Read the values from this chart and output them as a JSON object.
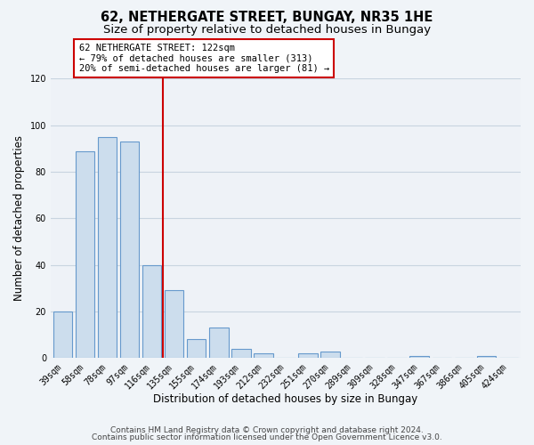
{
  "title": "62, NETHERGATE STREET, BUNGAY, NR35 1HE",
  "subtitle": "Size of property relative to detached houses in Bungay",
  "xlabel": "Distribution of detached houses by size in Bungay",
  "ylabel": "Number of detached properties",
  "bar_labels": [
    "39sqm",
    "58sqm",
    "78sqm",
    "97sqm",
    "116sqm",
    "135sqm",
    "155sqm",
    "174sqm",
    "193sqm",
    "212sqm",
    "232sqm",
    "251sqm",
    "270sqm",
    "289sqm",
    "309sqm",
    "328sqm",
    "347sqm",
    "367sqm",
    "386sqm",
    "405sqm",
    "424sqm"
  ],
  "bar_values": [
    20,
    89,
    95,
    93,
    40,
    29,
    8,
    13,
    4,
    2,
    0,
    2,
    3,
    0,
    0,
    0,
    1,
    0,
    0,
    1,
    0
  ],
  "bar_color": "#ccdded",
  "bar_edge_color": "#6699cc",
  "vline_color": "#cc0000",
  "ylim": [
    0,
    120
  ],
  "yticks": [
    0,
    20,
    40,
    60,
    80,
    100,
    120
  ],
  "annotation_lines": [
    "62 NETHERGATE STREET: 122sqm",
    "← 79% of detached houses are smaller (313)",
    "20% of semi-detached houses are larger (81) →"
  ],
  "annotation_box_color": "#ffffff",
  "annotation_box_edge": "#cc0000",
  "footer_line1": "Contains HM Land Registry data © Crown copyright and database right 2024.",
  "footer_line2": "Contains public sector information licensed under the Open Government Licence v3.0.",
  "bg_color": "#f0f4f8",
  "plot_bg_color": "#eef2f7",
  "grid_color": "#c8d4e0",
  "title_fontsize": 10.5,
  "subtitle_fontsize": 9.5,
  "axis_label_fontsize": 8.5,
  "tick_fontsize": 7,
  "annotation_fontsize": 7.5,
  "footer_fontsize": 6.5
}
